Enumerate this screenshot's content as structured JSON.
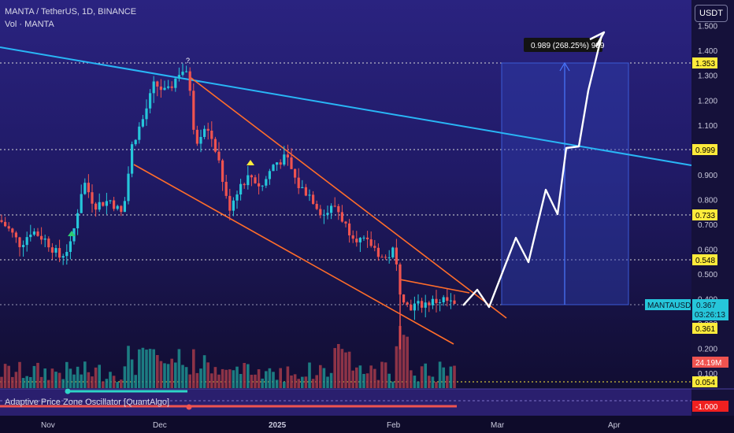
{
  "header": {
    "symbol_line": "MANTA / TetherUS, 1D, BINANCE",
    "volume_line": "Vol · MANTA",
    "currency_button": "USDT"
  },
  "measure_label": "0.989 (268.25%) 989",
  "indicator_label": "Adaptive Price Zone Oscillator [QuantAlgo]",
  "price_axis": {
    "ticks": [
      "1.500",
      "1.400",
      "1.300",
      "1.200",
      "1.100",
      "1.000",
      "0.900",
      "0.800",
      "0.700",
      "0.600",
      "0.500",
      "0.400",
      "0.300",
      "0.200",
      "0.100"
    ],
    "levels": [
      {
        "label": "1.353",
        "value": 1.353
      },
      {
        "label": "0.999",
        "value": 0.999
      },
      {
        "label": "0.733",
        "value": 0.733
      },
      {
        "label": "0.548",
        "value": 0.548
      },
      {
        "label": "0.361",
        "value": 0.361
      },
      {
        "label": "0.054",
        "value": 0.054
      }
    ],
    "current_symbol": "MANTAUSDT",
    "current_price": "0.367",
    "countdown": "03:26:13",
    "volume_value": "24.19M",
    "oscillator_value": "-1.000"
  },
  "time_axis": [
    "Nov",
    "Dec",
    "2025",
    "Feb",
    "Mar",
    "Apr"
  ],
  "colors": {
    "bull": "#26c6da",
    "bear": "#ef5350",
    "trendline": "#29b6f6",
    "channel": "#ff6d2a",
    "level_tag": "#ffeb3b",
    "projection": "#ffffff"
  },
  "chart_data": {
    "type": "candlestick",
    "ohlc_sample": [
      {
        "date": "2024-11-01",
        "close": 0.64
      },
      {
        "date": "2024-11-12",
        "close": 0.57
      },
      {
        "date": "2024-11-26",
        "close": 0.95
      },
      {
        "date": "2024-12-08",
        "close": 1.33
      },
      {
        "date": "2024-12-15",
        "close": 1.05
      },
      {
        "date": "2025-01-06",
        "close": 0.92
      },
      {
        "date": "2025-01-25",
        "close": 0.62
      },
      {
        "date": "2025-02-03",
        "close": 0.4
      },
      {
        "date": "2025-02-17",
        "close": 0.367
      }
    ],
    "projection_path": [
      0.36,
      0.4,
      0.36,
      0.62,
      0.48,
      0.82,
      0.71,
      1.18,
      1.06,
      1.49
    ],
    "ylim": [
      0.05,
      1.55
    ]
  }
}
